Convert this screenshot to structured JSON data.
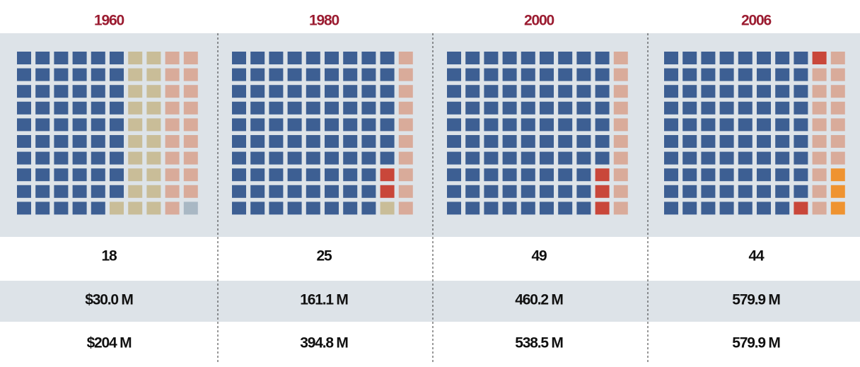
{
  "columns": [
    {
      "year": "1960",
      "waffle": [
        {
          "color": "#3d5f93",
          "count": 59
        },
        {
          "color": "#c9bd98",
          "count": 21
        },
        {
          "color": "#d9ab9a",
          "count": 19
        },
        {
          "color": "#a9b8c4",
          "count": 1
        }
      ],
      "rows": [
        "18",
        "$30.0 M",
        "$204 M"
      ]
    },
    {
      "year": "1980",
      "waffle": [
        {
          "color": "#3d5f93",
          "count": 87
        },
        {
          "color": "#c9473a",
          "count": 2
        },
        {
          "color": "#c9bd98",
          "count": 1
        },
        {
          "color": "#d9ab9a",
          "count": 10
        }
      ],
      "rows": [
        "25",
        "161.1 M",
        "394.8 M"
      ]
    },
    {
      "year": "2000",
      "waffle": [
        {
          "color": "#3d5f93",
          "count": 87
        },
        {
          "color": "#c9473a",
          "count": 3
        },
        {
          "color": "#d9ab9a",
          "count": 10
        }
      ],
      "rows": [
        "49",
        "460.2 M",
        "538.5 M"
      ]
    },
    {
      "year": "2006",
      "waffle": [
        {
          "color": "#3d5f93",
          "count": 79
        },
        {
          "color": "#c9473a",
          "count": 2
        },
        {
          "color": "#d9ab9a",
          "count": 16
        },
        {
          "color": "#ef9330",
          "count": 3
        }
      ],
      "rows": [
        "44",
        "579.9 M",
        "579.9 M"
      ]
    }
  ]
}
